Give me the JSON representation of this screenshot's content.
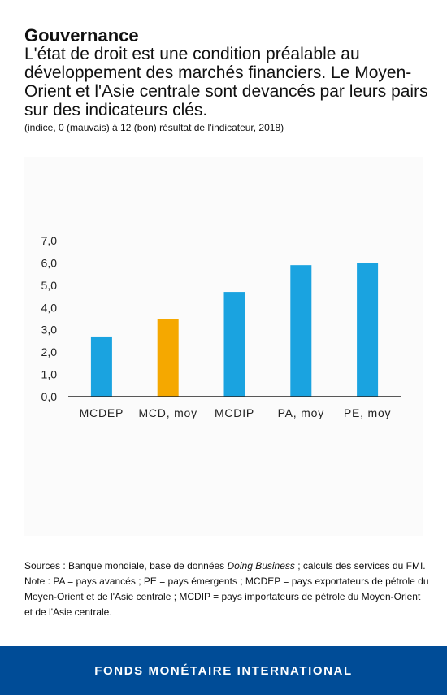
{
  "header": {
    "title": "Gouvernance",
    "subtitle": "L'état de droit est une condition préalable au développement des marchés financiers. Le Moyen-Orient et l'Asie centrale sont devancés par leurs pairs sur des indicateurs clés.",
    "units": "(indice, 0 (mauvais) à 12 (bon) résultat de l'indicateur, 2018)"
  },
  "chart_data": {
    "type": "bar",
    "categories": [
      "MCDEP",
      "MCD, moy",
      "MCDIP",
      "PA, moy",
      "PE, moy"
    ],
    "values": [
      2.7,
      3.5,
      4.7,
      5.9,
      6.0
    ],
    "colors": [
      "#1aa3e0",
      "#f5a800",
      "#1aa3e0",
      "#1aa3e0",
      "#1aa3e0"
    ],
    "yticks": [
      "0,0",
      "1,0",
      "2,0",
      "3,0",
      "4,0",
      "5,0",
      "6,0",
      "7,0"
    ],
    "ylim": [
      0,
      7
    ],
    "grid": false,
    "title": "",
    "xlabel": "",
    "ylabel": ""
  },
  "notes": {
    "sources_prefix": "Sources : Banque mondiale, base de données ",
    "sources_italic": "Doing Business",
    "sources_suffix": " ; calculs des services du FMI.",
    "note": "Note : PA =  pays avancés ; PE = pays émergents ; MCDEP = pays exportateurs de pétrole du Moyen-Orient et de l'Asie centrale ; MCDIP = pays importateurs de pétrole du Moyen-Orient et de l'Asie centrale."
  },
  "footer": {
    "label": "FONDS MONÉTAIRE INTERNATIONAL"
  }
}
